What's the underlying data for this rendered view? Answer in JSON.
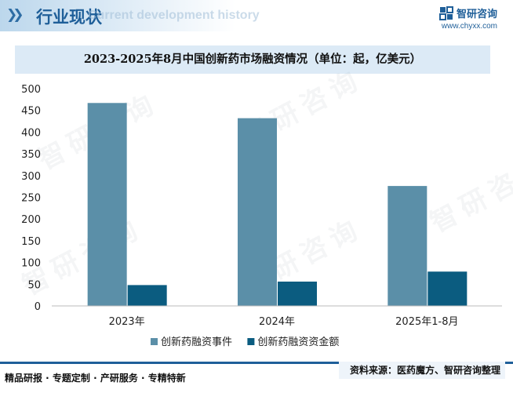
{
  "header": {
    "title": "行业现状",
    "ghost_text": "Current development history",
    "brand_name": "智研咨询",
    "brand_url": "www.chyxx.com"
  },
  "watermark_text": "智研咨询",
  "chart_data": {
    "type": "bar",
    "title": "2023-2025年8月中国创新药市场融资情况（单位：起，亿美元）",
    "categories": [
      "2023年",
      "2024年",
      "2025年1-8月"
    ],
    "series": [
      {
        "name": "创新药融资事件",
        "values": [
          467,
          432,
          276
        ],
        "color": "#5b8fa8"
      },
      {
        "name": "创新药融资资金额",
        "values": [
          48,
          56,
          79
        ],
        "color": "#0b5c80"
      }
    ],
    "ylim": [
      0,
      500
    ],
    "yticks": [
      0,
      50,
      100,
      150,
      200,
      250,
      300,
      350,
      400,
      450,
      500
    ],
    "xlabel": "",
    "ylabel": "",
    "grid": false,
    "legend_position": "bottom"
  },
  "footer": {
    "left": "精品研报 · 专题定制 · 产研服务 · 专精特新",
    "right": "资料来源：医药魔方、智研咨询整理"
  }
}
